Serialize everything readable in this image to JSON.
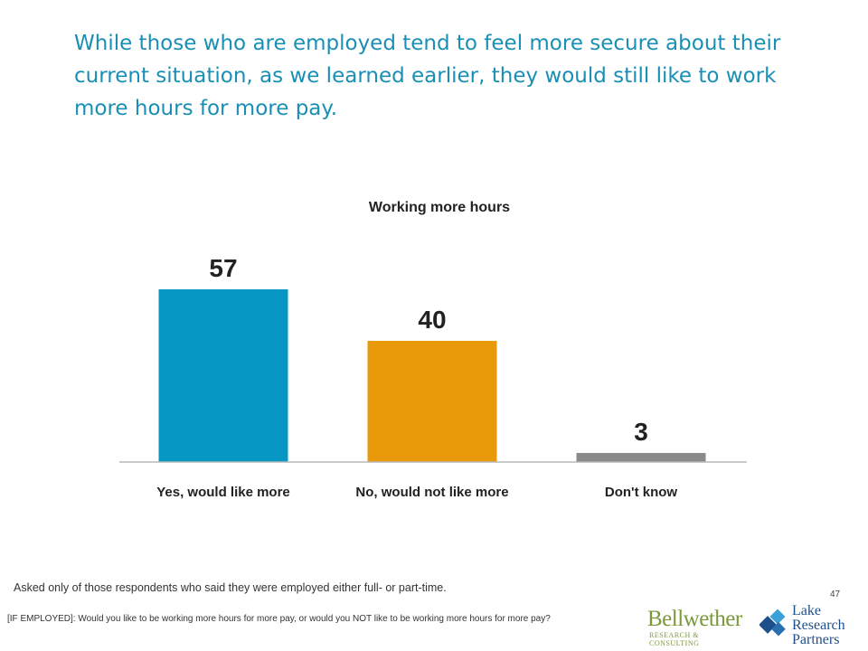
{
  "headline": "While those who are employed tend to feel more secure about their current situation, as we learned earlier, they would still like to work more hours for more pay.",
  "chart_data": {
    "type": "bar",
    "title": "Working more hours",
    "categories": [
      "Yes, would like more",
      "No, would not like more",
      "Don't know"
    ],
    "values": [
      57,
      40,
      3
    ],
    "colors": [
      "#0797c4",
      "#e89a0b",
      "#8a8a8a"
    ],
    "ylim": [
      0,
      60
    ],
    "grid": false,
    "xlabel": "",
    "ylabel": ""
  },
  "footnote": "Asked only of those respondents who said they were employed either full- or part-time.",
  "question": "[IF EMPLOYED]: Would you like to be working more hours for more pay, or would you NOT like to be working more hours for more pay?",
  "page_number": "47",
  "logos": {
    "bellwether": {
      "name": "Bellwether",
      "sub": "RESEARCH & CONSULTING"
    },
    "lake_research": {
      "line1": "Lake",
      "line2": "Research",
      "line3": "Partners"
    }
  }
}
